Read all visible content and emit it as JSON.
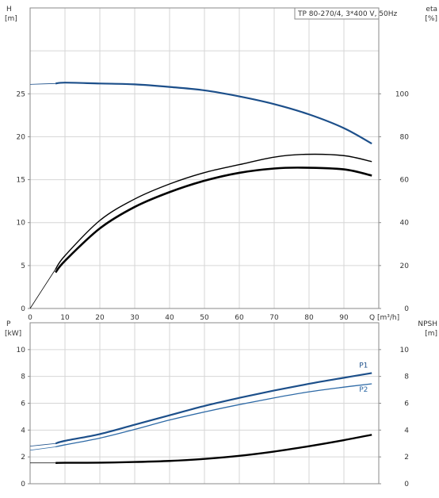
{
  "colors": {
    "grid": "#d6d6d6",
    "frame": "#8a8a8a",
    "text": "#333333",
    "head_curve": "#1c4f8a",
    "p1_curve": "#1c4f8a",
    "p2_curve": "#2e6aa6",
    "black_curve": "#000000",
    "thin_curve": "#555555"
  },
  "chart_data": [
    {
      "type": "line",
      "panel": "head-efficiency",
      "title": "TP 80-270/4, 3*400 V, 50Hz",
      "xlabel": "Q [m³/h]",
      "ylabel_left": "H",
      "ylabel_left_unit": "[m]",
      "ylabel_right": "eta",
      "ylabel_right_unit": "[%]",
      "xlim": [
        0,
        100
      ],
      "ylim_left": [
        0,
        35
      ],
      "ylim_right": [
        0,
        140
      ],
      "x_ticks": [
        0,
        10,
        20,
        30,
        40,
        50,
        60,
        70,
        80,
        90
      ],
      "x_tick_labels": [
        "0",
        "10",
        "20",
        "30",
        "40",
        "50",
        "60",
        "70",
        "80",
        "90"
      ],
      "y_left_ticks": [
        0,
        5,
        10,
        15,
        20,
        25
      ],
      "y_left_tick_labels": [
        "0",
        "5",
        "10",
        "15",
        "20",
        "25"
      ],
      "y_right_ticks": [
        0,
        20,
        40,
        60,
        80,
        100
      ],
      "y_right_tick_labels": [
        "0",
        "20",
        "40",
        "60",
        "80",
        "100"
      ],
      "grid": true,
      "series": [
        {
          "axis": "left",
          "style": "head",
          "x": [
            0,
            7.3,
            10,
            20,
            30,
            40,
            50,
            60,
            70,
            80,
            90,
            98
          ],
          "y": [
            26.1,
            26.2,
            26.3,
            26.2,
            26.1,
            25.8,
            25.4,
            24.7,
            23.8,
            22.6,
            21.0,
            19.2
          ],
          "dim_x": 7.3
        },
        {
          "axis": "right",
          "style": "eta-thin",
          "x": [
            0,
            7,
            10,
            20,
            30,
            40,
            50,
            60,
            70,
            79,
            90,
            98
          ],
          "y": [
            0,
            17.6,
            24.6,
            41,
            51,
            58,
            63.3,
            67,
            70.5,
            71.8,
            71.2,
            68.4
          ],
          "dim_x": 7.3
        },
        {
          "axis": "right",
          "style": "eta-thick",
          "x": [
            7.3,
            10,
            20,
            30,
            40,
            50,
            60,
            70,
            78,
            90,
            98
          ],
          "y": [
            16.8,
            22.2,
            37.3,
            47.3,
            54.2,
            59.5,
            63.2,
            65.2,
            65.6,
            64.8,
            61.9
          ]
        }
      ]
    },
    {
      "type": "line",
      "panel": "power-npsh",
      "xlabel": "",
      "ylabel_left": "P",
      "ylabel_left_unit": "[kW]",
      "ylabel_right": "NPSH",
      "ylabel_right_unit": "[m]",
      "xlim": [
        0,
        100
      ],
      "ylim_left": [
        0,
        12
      ],
      "ylim_right": [
        0,
        12
      ],
      "x_ticks": [
        0,
        10,
        20,
        30,
        40,
        50,
        60,
        70,
        80,
        90
      ],
      "y_left_ticks": [
        0,
        2,
        4,
        6,
        8,
        10
      ],
      "y_left_tick_labels": [
        "0",
        "2",
        "4",
        "6",
        "8",
        "10"
      ],
      "y_right_ticks": [
        0,
        2,
        4,
        6,
        8,
        10
      ],
      "y_right_tick_labels": [
        "0",
        "2",
        "4",
        "6",
        "8",
        "10"
      ],
      "grid": true,
      "series": [
        {
          "name": "P1",
          "axis": "left",
          "style": "p1",
          "x": [
            0,
            7.3,
            10,
            20,
            30,
            40,
            50,
            60,
            70,
            80,
            90,
            98
          ],
          "y": [
            2.8,
            3.0,
            3.2,
            3.7,
            4.4,
            5.1,
            5.8,
            6.4,
            6.95,
            7.45,
            7.9,
            8.25
          ],
          "dim_x": 7.3
        },
        {
          "name": "P2",
          "axis": "left",
          "style": "p2",
          "x": [
            0,
            7.3,
            10,
            20,
            30,
            40,
            50,
            60,
            70,
            80,
            90,
            98
          ],
          "y": [
            2.5,
            2.75,
            2.9,
            3.4,
            4.05,
            4.75,
            5.35,
            5.9,
            6.4,
            6.85,
            7.2,
            7.45
          ],
          "dim_x": 7.3
        },
        {
          "axis": "right",
          "style": "npsh",
          "x": [
            0,
            7.3,
            10,
            20,
            30,
            40,
            50,
            60,
            70,
            80,
            90,
            98
          ],
          "y": [
            1.55,
            1.55,
            1.56,
            1.57,
            1.62,
            1.7,
            1.85,
            2.08,
            2.4,
            2.8,
            3.25,
            3.65
          ],
          "dim_x": 7.3
        }
      ]
    }
  ]
}
